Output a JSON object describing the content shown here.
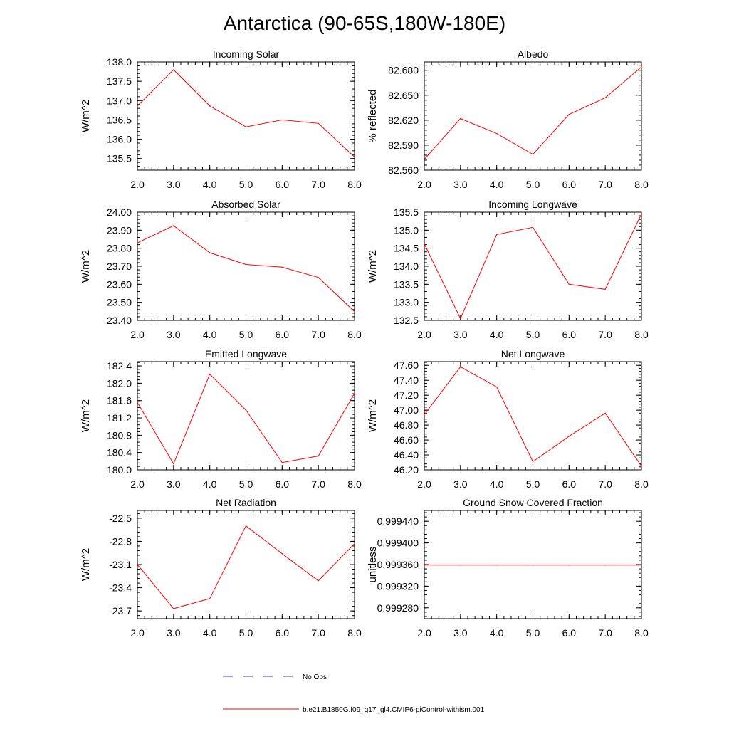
{
  "figure": {
    "title": "Antarctica (90-65S,180W-180E)"
  },
  "legend": {
    "items": [
      {
        "label": "No Obs",
        "color": "#3b3bd6",
        "style": "dashed"
      },
      {
        "label": "b.e21.B1850G.f09_g17_gl4.CMIP6-piControl-withism.001",
        "color": "#ff0000",
        "style": "solid"
      }
    ]
  },
  "chart_data": [
    {
      "type": "line",
      "title": "Incoming Solar",
      "ylabel": "W/m^2",
      "xlim": [
        2,
        8
      ],
      "ylim": [
        135.2,
        138.0
      ],
      "yticks": [
        135.5,
        136.0,
        136.5,
        137.0,
        137.5,
        138.0
      ],
      "yticklabels": [
        "135.5",
        "136.0",
        "136.5",
        "137.0",
        "137.5",
        "138.0"
      ],
      "xticks": [
        2,
        3,
        4,
        5,
        6,
        7,
        8
      ],
      "xticklabels": [
        "2.0",
        "3.0",
        "4.0",
        "5.0",
        "6.0",
        "7.0",
        "8.0"
      ],
      "series": [
        {
          "color": "#ff0000",
          "x": [
            2,
            3,
            4,
            5,
            6,
            7,
            8
          ],
          "y": [
            136.86,
            137.8,
            136.86,
            136.32,
            136.5,
            136.41,
            135.54
          ]
        }
      ]
    },
    {
      "type": "line",
      "title": "Albedo",
      "ylabel": "% reflected",
      "xlim": [
        2,
        8
      ],
      "ylim": [
        82.56,
        82.69
      ],
      "yticks": [
        82.56,
        82.59,
        82.62,
        82.65,
        82.68
      ],
      "yticklabels": [
        "82.560",
        "82.590",
        "82.620",
        "82.650",
        "82.680"
      ],
      "xticks": [
        2,
        3,
        4,
        5,
        6,
        7,
        8
      ],
      "xticklabels": [
        "2.0",
        "3.0",
        "4.0",
        "5.0",
        "6.0",
        "7.0",
        "8.0"
      ],
      "series": [
        {
          "color": "#ff0000",
          "x": [
            2,
            3,
            4,
            5,
            6,
            7,
            8
          ],
          "y": [
            82.573,
            82.622,
            82.604,
            82.579,
            82.627,
            82.647,
            82.684
          ]
        }
      ]
    },
    {
      "type": "line",
      "title": "Absorbed Solar",
      "ylabel": "W/m^2",
      "xlim": [
        2,
        8
      ],
      "ylim": [
        23.4,
        24.0
      ],
      "yticks": [
        23.4,
        23.5,
        23.6,
        23.7,
        23.8,
        23.9,
        24.0
      ],
      "yticklabels": [
        "23.40",
        "23.50",
        "23.60",
        "23.70",
        "23.80",
        "23.90",
        "24.00"
      ],
      "xticks": [
        2,
        3,
        4,
        5,
        6,
        7,
        8
      ],
      "xticklabels": [
        "2.0",
        "3.0",
        "4.0",
        "5.0",
        "6.0",
        "7.0",
        "8.0"
      ],
      "series": [
        {
          "color": "#ff0000",
          "x": [
            2,
            3,
            4,
            5,
            6,
            7,
            8
          ],
          "y": [
            23.83,
            23.925,
            23.775,
            23.71,
            23.695,
            23.638,
            23.448
          ]
        }
      ]
    },
    {
      "type": "line",
      "title": "Incoming Longwave",
      "ylabel": "W/m^2",
      "xlim": [
        2,
        8
      ],
      "ylim": [
        132.5,
        135.5
      ],
      "yticks": [
        132.5,
        133.0,
        133.5,
        134.0,
        134.5,
        135.0,
        135.5
      ],
      "yticklabels": [
        "132.5",
        "133.0",
        "133.5",
        "134.0",
        "134.5",
        "135.0",
        "135.5"
      ],
      "xticks": [
        2,
        3,
        4,
        5,
        6,
        7,
        8
      ],
      "xticklabels": [
        "2.0",
        "3.0",
        "4.0",
        "5.0",
        "6.0",
        "7.0",
        "8.0"
      ],
      "series": [
        {
          "color": "#ff0000",
          "x": [
            2,
            3,
            4,
            5,
            6,
            7,
            8
          ],
          "y": [
            134.62,
            132.55,
            134.88,
            135.08,
            133.5,
            133.36,
            135.45
          ]
        }
      ]
    },
    {
      "type": "line",
      "title": "Emitted Longwave",
      "ylabel": "W/m^2",
      "xlim": [
        2,
        8
      ],
      "ylim": [
        180.0,
        182.5
      ],
      "yticks": [
        180.0,
        180.4,
        180.8,
        181.2,
        181.6,
        182.0,
        182.4
      ],
      "yticklabels": [
        "180.0",
        "180.4",
        "180.8",
        "181.2",
        "181.6",
        "182.0",
        "182.4"
      ],
      "xticks": [
        2,
        3,
        4,
        5,
        6,
        7,
        8
      ],
      "xticklabels": [
        "2.0",
        "3.0",
        "4.0",
        "5.0",
        "6.0",
        "7.0",
        "8.0"
      ],
      "series": [
        {
          "color": "#ff0000",
          "x": [
            2,
            3,
            4,
            5,
            6,
            7,
            8
          ],
          "y": [
            181.56,
            180.14,
            182.21,
            181.38,
            180.17,
            180.32,
            181.77
          ]
        }
      ]
    },
    {
      "type": "line",
      "title": "Net Longwave",
      "ylabel": "W/m^2",
      "xlim": [
        2,
        8
      ],
      "ylim": [
        46.2,
        47.65
      ],
      "yticks": [
        46.2,
        46.4,
        46.6,
        46.8,
        47.0,
        47.2,
        47.4,
        47.6
      ],
      "yticklabels": [
        "46.20",
        "46.40",
        "46.60",
        "46.80",
        "47.00",
        "47.20",
        "47.40",
        "47.60"
      ],
      "xticks": [
        2,
        3,
        4,
        5,
        6,
        7,
        8
      ],
      "xticklabels": [
        "2.0",
        "3.0",
        "4.0",
        "5.0",
        "6.0",
        "7.0",
        "8.0"
      ],
      "series": [
        {
          "color": "#ff0000",
          "x": [
            2,
            3,
            4,
            5,
            6,
            7,
            8
          ],
          "y": [
            46.94,
            47.58,
            47.31,
            46.31,
            46.65,
            46.96,
            46.25
          ]
        }
      ]
    },
    {
      "type": "line",
      "title": "Net Radiation",
      "ylabel": "W/m^2",
      "xlim": [
        2,
        8
      ],
      "ylim": [
        -23.8,
        -22.4
      ],
      "yticks": [
        -23.7,
        -23.4,
        -23.1,
        -22.8,
        -22.5
      ],
      "yticklabels": [
        "-23.7",
        "-23.4",
        "-23.1",
        "-22.8",
        "-22.5"
      ],
      "xticks": [
        2,
        3,
        4,
        5,
        6,
        7,
        8
      ],
      "xticklabels": [
        "2.0",
        "3.0",
        "4.0",
        "5.0",
        "6.0",
        "7.0",
        "8.0"
      ],
      "series": [
        {
          "color": "#ff0000",
          "x": [
            2,
            3,
            4,
            5,
            6,
            7,
            8
          ],
          "y": [
            -23.1,
            -23.67,
            -23.54,
            -22.6,
            -22.96,
            -23.31,
            -22.83
          ]
        }
      ]
    },
    {
      "type": "line",
      "title": "Ground Snow Covered Fraction",
      "ylabel": "unitless",
      "xlim": [
        2,
        8
      ],
      "ylim": [
        0.99926,
        0.99946
      ],
      "yticks": [
        0.99928,
        0.99932,
        0.99936,
        0.9994,
        0.99944
      ],
      "yticklabels": [
        "0.999280",
        "0.999320",
        "0.999360",
        "0.999400",
        "0.999440"
      ],
      "xticks": [
        2,
        3,
        4,
        5,
        6,
        7,
        8
      ],
      "xticklabels": [
        "2.0",
        "3.0",
        "4.0",
        "5.0",
        "6.0",
        "7.0",
        "8.0"
      ],
      "series": [
        {
          "color": "#ff0000",
          "x": [
            2,
            3,
            4,
            5,
            6,
            7,
            8
          ],
          "y": [
            0.999359,
            0.999359,
            0.999359,
            0.999359,
            0.999359,
            0.999359,
            0.999359
          ]
        }
      ]
    }
  ]
}
